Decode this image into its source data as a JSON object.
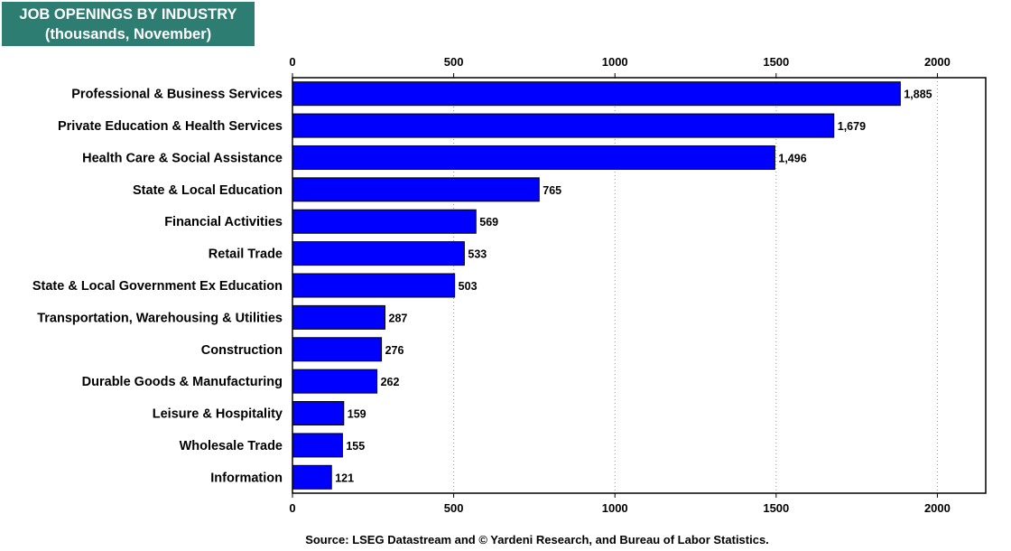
{
  "title": "JOB OPENINGS BY INDUSTRY",
  "subtitle": "(thousands, November)",
  "source": "Source: LSEG Datastream and © Yardeni Research, and Bureau of Labor Statistics.",
  "chart_data": {
    "type": "bar",
    "orientation": "horizontal",
    "title": "JOB OPENINGS BY INDUSTRY",
    "subtitle": "(thousands, November)",
    "categories": [
      "Professional & Business Services",
      "Private Education & Health Services",
      "Health Care & Social Assistance",
      "State & Local Education",
      "Financial Activities",
      "Retail Trade",
      "State & Local Government Ex Education",
      "Transportation, Warehousing & Utilities",
      "Construction",
      "Durable Goods & Manufacturing",
      "Leisure & Hospitality",
      "Wholesale Trade",
      "Information"
    ],
    "values": [
      1885,
      1679,
      1496,
      765,
      569,
      533,
      503,
      287,
      276,
      262,
      159,
      155,
      121
    ],
    "value_labels": [
      "1,885",
      "1,679",
      "1,496",
      "765",
      "569",
      "533",
      "503",
      "287",
      "276",
      "262",
      "159",
      "155",
      "121"
    ],
    "xlim": [
      0,
      2150
    ],
    "ticks": [
      0,
      500,
      1000,
      1500,
      2000
    ],
    "tick_labels": [
      "0",
      "500",
      "1000",
      "1500",
      "2000"
    ],
    "grid": true,
    "bar_color": "#0000ff",
    "title_box_color": "#2e7d73"
  }
}
